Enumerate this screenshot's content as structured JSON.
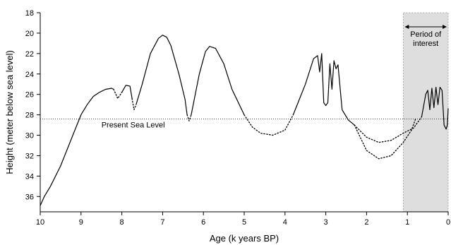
{
  "chart_data": {
    "type": "line",
    "title": "",
    "xlabel": "Age (k years BP)",
    "ylabel": "Height (meter below sea level)",
    "xlim": [
      10,
      0
    ],
    "ylim": [
      18,
      37.5
    ],
    "x_ticks": [
      10,
      9,
      8,
      7,
      6,
      5,
      4,
      3,
      2,
      1,
      0
    ],
    "y_ticks": [
      18,
      20,
      22,
      24,
      26,
      28,
      30,
      32,
      34,
      36
    ],
    "reference_line": {
      "label": "Present Sea Level",
      "y": 28.4,
      "style": "dotted"
    },
    "shaded_region": {
      "label": "Period of interest",
      "x": [
        1.1,
        0
      ],
      "color": "#dedede"
    },
    "series": [
      {
        "style": "solid",
        "x": [
          10,
          9.9,
          9.75,
          9.5,
          9.2,
          9.0,
          8.85,
          8.7,
          8.55,
          8.4,
          8.25,
          8.2
        ],
        "y": [
          36.9,
          36,
          35,
          33,
          30,
          28,
          27,
          26.2,
          25.8,
          25.5,
          25.4,
          25.5
        ]
      },
      {
        "style": "dotted",
        "x": [
          8.2,
          8.1,
          8.0
        ],
        "y": [
          25.5,
          26.4,
          25.8
        ]
      },
      {
        "style": "solid",
        "x": [
          8.0,
          7.9,
          7.8,
          7.75
        ],
        "y": [
          25.8,
          25.1,
          25.2,
          26.4
        ]
      },
      {
        "style": "dotted",
        "x": [
          7.75,
          7.7,
          7.65
        ],
        "y": [
          26.4,
          27.5,
          27.0
        ]
      },
      {
        "style": "solid",
        "x": [
          7.65,
          7.5,
          7.3,
          7.1,
          7.0,
          6.9,
          6.8,
          6.6,
          6.45,
          6.4
        ],
        "y": [
          27.0,
          25.0,
          22.0,
          20.5,
          20.2,
          20.4,
          21.2,
          24.0,
          26.5,
          28.0
        ]
      },
      {
        "style": "dotted",
        "x": [
          6.4,
          6.35,
          6.3
        ],
        "y": [
          28.0,
          28.6,
          28.0
        ]
      },
      {
        "style": "solid",
        "x": [
          6.3,
          6.1,
          5.95,
          5.85,
          5.7,
          5.5,
          5.3,
          5.0
        ],
        "y": [
          28.0,
          24.0,
          21.8,
          21.3,
          21.5,
          23.0,
          25.5,
          28.0
        ]
      },
      {
        "style": "dotted",
        "x": [
          5.0,
          4.8,
          4.6,
          4.3,
          4.0,
          3.8
        ],
        "y": [
          28.0,
          29.2,
          29.8,
          30.0,
          29.5,
          28.0
        ]
      },
      {
        "style": "solid",
        "x": [
          3.8,
          3.5,
          3.3,
          3.2,
          3.15,
          3.1,
          3.05,
          3.0,
          2.95,
          2.9,
          2.85,
          2.8,
          2.75,
          2.7,
          2.6,
          2.45,
          2.3
        ],
        "y": [
          28.0,
          25.0,
          22.5,
          22.2,
          23.8,
          22.0,
          26.8,
          27.1,
          26.8,
          23.0,
          25.5,
          22.7,
          23.5,
          23.1,
          27.5,
          28.5,
          29.0
        ]
      },
      {
        "style": "dotted",
        "x": [
          2.3,
          2.0,
          1.7,
          1.4,
          1.1,
          0.85,
          0.65
        ],
        "y": [
          29.0,
          30.2,
          30.7,
          30.5,
          29.8,
          29.3,
          28.2
        ]
      },
      {
        "style": "dotted",
        "x": [
          2.3,
          2.0,
          1.7,
          1.4,
          1.1,
          0.9,
          0.8
        ],
        "y": [
          29.0,
          31.5,
          32.3,
          32.0,
          30.7,
          29.5,
          28.4
        ]
      },
      {
        "style": "solid",
        "x": [
          0.65,
          0.55,
          0.5,
          0.45,
          0.4,
          0.35,
          0.3,
          0.25,
          0.2,
          0.15,
          0.1,
          0.05,
          0.02,
          0
        ],
        "y": [
          28.2,
          26.0,
          25.6,
          27.5,
          25.4,
          27.3,
          25.3,
          27.0,
          25.3,
          25.6,
          29.0,
          29.4,
          29.0,
          27.4
        ]
      }
    ]
  }
}
